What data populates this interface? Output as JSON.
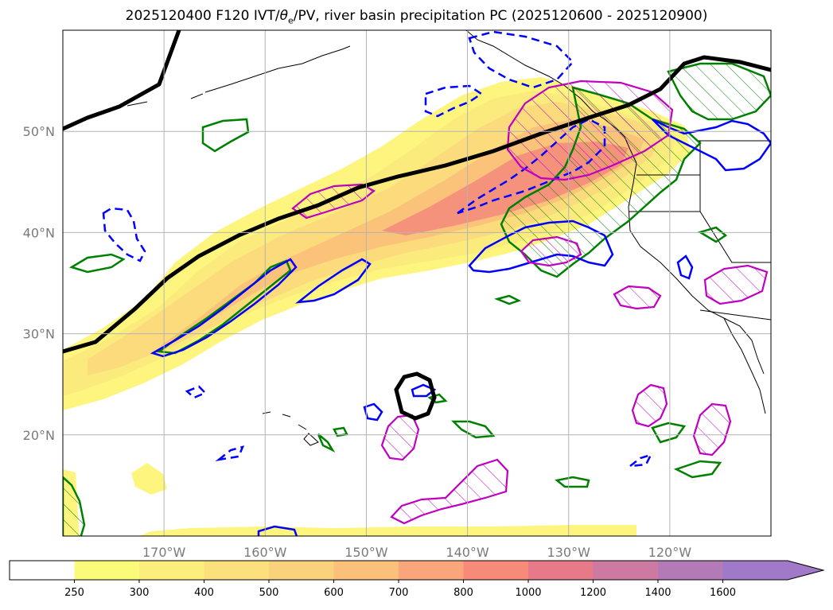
{
  "title": {
    "prefix": "2025120400 F120 IVT/",
    "theta": "θ",
    "sub": "e",
    "suffix": "/PV, river basin precipitation PC (2025120600 - 2025120900)"
  },
  "map": {
    "lon_range": [
      -180,
      -110
    ],
    "lat_range": [
      10,
      60
    ],
    "lon_ticks": [
      {
        "value": -170,
        "label": "170°W"
      },
      {
        "value": -160,
        "label": "160°W"
      },
      {
        "value": -150,
        "label": "150°W"
      },
      {
        "value": -140,
        "label": "140°W"
      },
      {
        "value": -130,
        "label": "130°W"
      },
      {
        "value": -120,
        "label": "120°W"
      }
    ],
    "lat_ticks": [
      {
        "value": 50,
        "label": "50°N"
      },
      {
        "value": 40,
        "label": "40°N"
      },
      {
        "value": 30,
        "label": "30°N"
      },
      {
        "value": 20,
        "label": "20°N"
      }
    ]
  },
  "colorbar": {
    "levels": [
      "250",
      "300",
      "400",
      "500",
      "600",
      "700",
      "800",
      "1000",
      "1200",
      "1400",
      "1600"
    ],
    "colors": [
      "#ffffff",
      "#fbfb7a",
      "#fbee7c",
      "#fbe07c",
      "#fbd27c",
      "#fbc07a",
      "#fba67a",
      "#f88a7a",
      "#e67a88",
      "#cc7aa2",
      "#b47ab8",
      "#a07ac8"
    ]
  },
  "colors": {
    "ivt_light": "#fdf57e",
    "ivt_mid": "#fbd97a",
    "ivt_high": "#fab27a",
    "ivt_peak": "#f5907c",
    "pv": "#0000ff",
    "theta": "#008000",
    "precip": "#c000c0",
    "jet": "#000000",
    "coast": "#000000",
    "grid": "#b4b4b4"
  }
}
